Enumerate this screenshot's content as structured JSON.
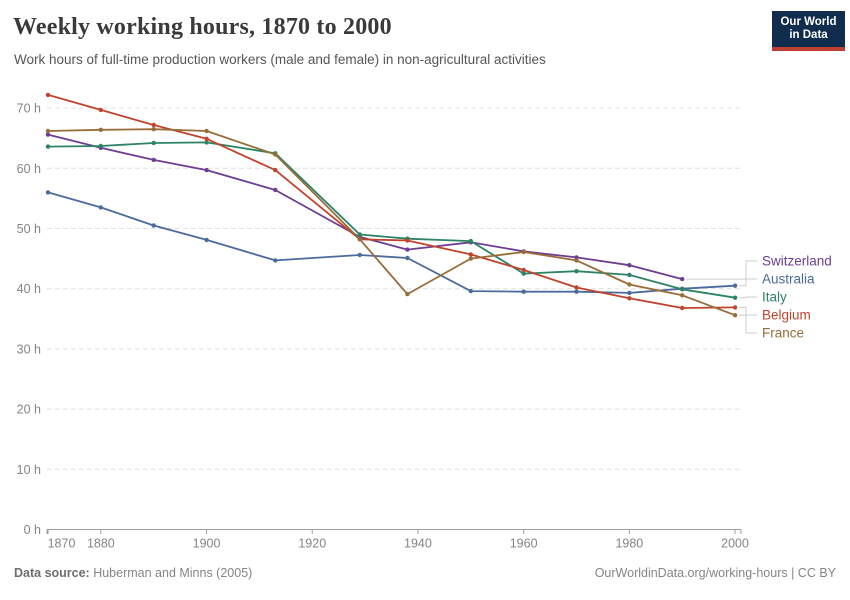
{
  "header": {
    "title": "Weekly working hours, 1870 to 2000",
    "subtitle": "Work hours of full-time production workers (male and female) in non-agricultural activities"
  },
  "logo": {
    "line1": "Our World",
    "line2": "in Data",
    "bg_color": "#102d4e",
    "accent_color": "#bc3f34"
  },
  "footer": {
    "source_label": "Data source:",
    "source_value": " Huberman and Minns (2005)",
    "right_text": "OurWorldinData.org/working-hours | CC BY"
  },
  "chart_data": {
    "type": "line",
    "title": "Weekly working hours, 1870 to 2000",
    "xlabel": "",
    "ylabel": "",
    "x": [
      1870,
      1880,
      1890,
      1900,
      1913,
      1929,
      1938,
      1950,
      1960,
      1970,
      1980,
      1990,
      2000
    ],
    "x_tick_labels": [
      1870,
      1880,
      1900,
      1920,
      1940,
      1960,
      1980,
      2000
    ],
    "y_ticks": [
      0,
      10,
      20,
      30,
      40,
      50,
      60,
      70
    ],
    "y_tick_suffix": " h",
    "ylim": [
      0,
      73
    ],
    "xlim": [
      1870,
      2001
    ],
    "grid": "horizontal-dashed",
    "legend_position": "right-of-line-ends",
    "series": [
      {
        "name": "Switzerland",
        "color": "#6d3e91",
        "values": [
          65.6,
          63.4,
          61.4,
          59.7,
          56.4,
          48.6,
          46.5,
          47.7,
          46.2,
          45.2,
          43.9,
          41.6,
          null
        ]
      },
      {
        "name": "Australia",
        "color": "#4c6a9c",
        "values": [
          56.0,
          53.5,
          50.5,
          48.1,
          44.7,
          45.6,
          45.1,
          39.6,
          39.5,
          39.5,
          39.3,
          40.0,
          40.5
        ]
      },
      {
        "name": "Italy",
        "color": "#2c8465",
        "values": [
          63.6,
          63.7,
          64.2,
          64.3,
          62.5,
          49.0,
          48.3,
          47.9,
          42.5,
          42.9,
          42.3,
          39.9,
          38.5
        ]
      },
      {
        "name": "Belgium",
        "color": "#c0442c",
        "values": [
          72.2,
          69.7,
          67.2,
          64.9,
          59.7,
          48.2,
          48.0,
          45.7,
          43.1,
          40.2,
          38.4,
          36.8,
          36.9
        ]
      },
      {
        "name": "France",
        "color": "#996d39",
        "values": [
          66.2,
          66.4,
          66.5,
          66.2,
          62.3,
          48.2,
          39.1,
          45.0,
          46.1,
          44.7,
          40.7,
          38.9,
          35.6
        ]
      }
    ],
    "styling": {
      "grid_color": "#dedede",
      "axis_color": "#9e9e9e",
      "tick_label_color": "#858585"
    }
  }
}
